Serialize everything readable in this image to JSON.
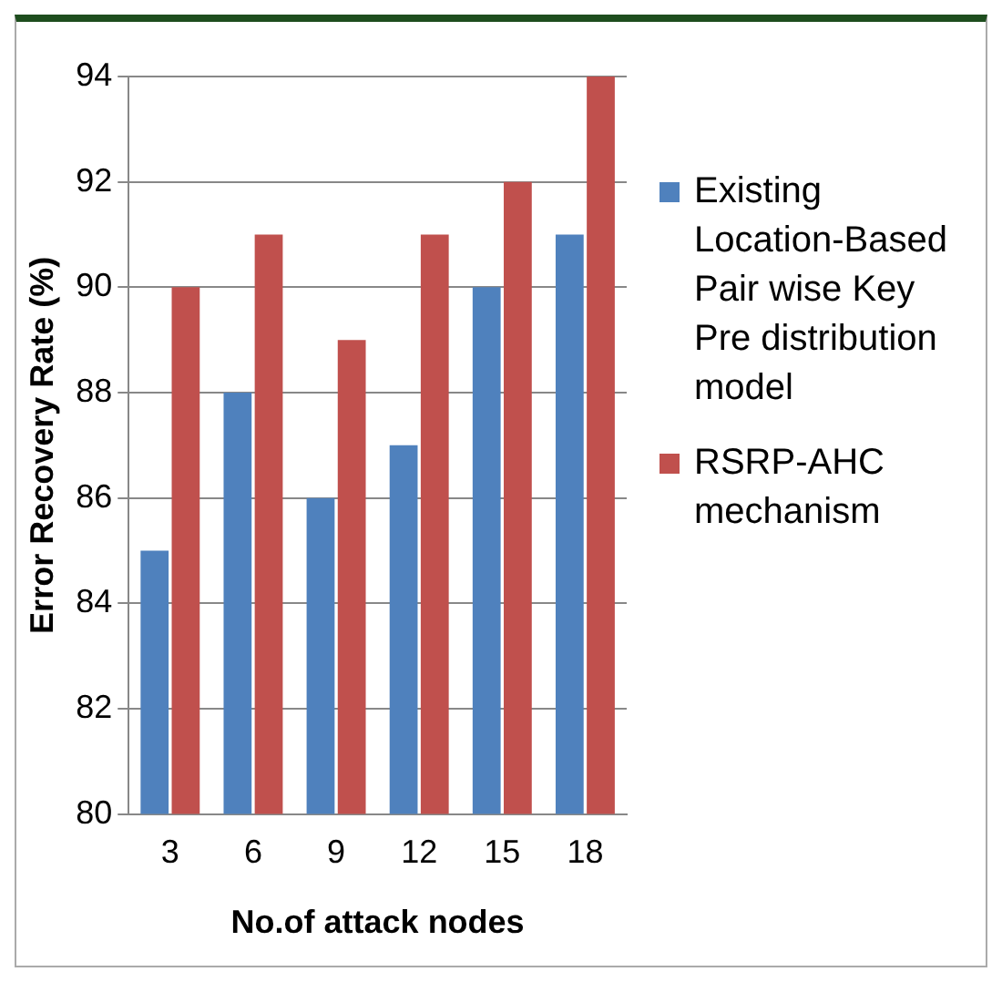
{
  "chart_data": {
    "type": "bar",
    "xlabel": "No.of attack nodes",
    "ylabel": "Error Recovery Rate (%)",
    "categories": [
      "3",
      "6",
      "9",
      "12",
      "15",
      "18"
    ],
    "series": [
      {
        "name": "Existing Location-Based Pair wise Key Pre distribution model",
        "color": "#4f81bd",
        "values": [
          85,
          88,
          86,
          87,
          90,
          91
        ]
      },
      {
        "name": "RSRP-AHC mechanism",
        "color": "#c0504d",
        "values": [
          90,
          91,
          89,
          91,
          92,
          94
        ]
      }
    ],
    "ylim": [
      80,
      94
    ],
    "yticks": [
      80,
      82,
      84,
      86,
      88,
      90,
      92,
      94
    ],
    "grid": "y",
    "legend": "right"
  }
}
